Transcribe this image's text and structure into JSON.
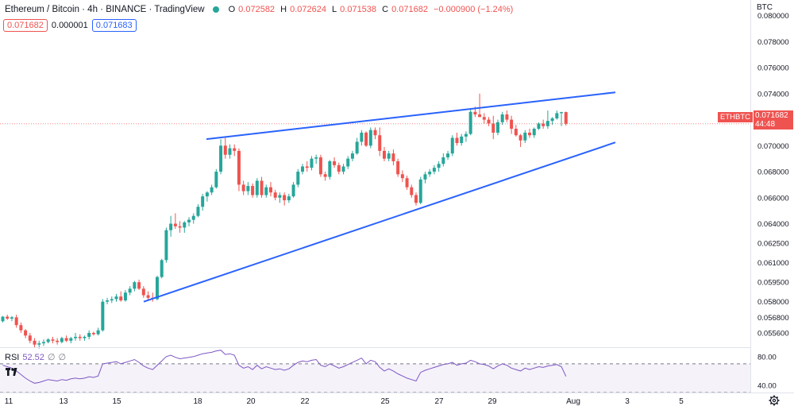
{
  "header": {
    "symbol": "Ethereum / Bitcoin · 4h · BINANCE · TradingView",
    "open_label": "O",
    "open": "0.072582",
    "high_label": "H",
    "high": "0.072624",
    "low_label": "L",
    "low": "0.071538",
    "close_label": "C",
    "close": "0.071682",
    "change": "−0.000900 (−1.24%)",
    "bid": "0.071682",
    "spread": "0.000001",
    "ask": "0.071683"
  },
  "price_axis": {
    "currency": "BTC",
    "ticks": [
      "0.080000",
      "0.078000",
      "0.076000",
      "0.074000",
      "0.070000",
      "0.068000",
      "0.066000",
      "0.064000",
      "0.062500",
      "0.061000",
      "0.059500",
      "0.058000",
      "0.056800",
      "0.055600"
    ],
    "symbol_tag": "ETHBTC",
    "last_price": "0.071682",
    "countdown": "44:48"
  },
  "rsi": {
    "label": "RSI",
    "value": "52.52",
    "extra1": "∅",
    "extra2": "∅",
    "ticks": [
      "80.00",
      "40.00"
    ]
  },
  "time_axis": {
    "ticks": [
      "11",
      "13",
      "15",
      "18",
      "20",
      "22",
      "25",
      "27",
      "29",
      "Aug",
      "3",
      "5"
    ]
  },
  "colors": {
    "up": "#26a69a",
    "down": "#ef5350",
    "trendline": "#2962ff",
    "rsi": "#7e57c2"
  },
  "chart_data": {
    "type": "candlestick",
    "title": "Ethereum / Bitcoin · 4h · BINANCE · TradingView",
    "ylim": [
      0.0545,
      0.0812
    ],
    "candles": [
      [
        0.0565,
        0.0569,
        0.0564,
        0.05685
      ],
      [
        0.05685,
        0.057,
        0.0566,
        0.0567
      ],
      [
        0.0567,
        0.0569,
        0.0565,
        0.0568
      ],
      [
        0.0568,
        0.057,
        0.056,
        0.0562
      ],
      [
        0.0562,
        0.0564,
        0.0556,
        0.0558
      ],
      [
        0.0558,
        0.0559,
        0.0552,
        0.0554
      ],
      [
        0.0554,
        0.0556,
        0.0548,
        0.055
      ],
      [
        0.055,
        0.0552,
        0.0545,
        0.0547
      ],
      [
        0.0547,
        0.055,
        0.0544,
        0.0548
      ],
      [
        0.0548,
        0.0551,
        0.0546,
        0.0549
      ],
      [
        0.0549,
        0.0552,
        0.0548,
        0.0551
      ],
      [
        0.0551,
        0.0553,
        0.0548,
        0.055
      ],
      [
        0.055,
        0.0552,
        0.0547,
        0.0549
      ],
      [
        0.0549,
        0.0553,
        0.0548,
        0.0552
      ],
      [
        0.0552,
        0.0554,
        0.0549,
        0.055
      ],
      [
        0.055,
        0.0553,
        0.0548,
        0.0552
      ],
      [
        0.0552,
        0.0556,
        0.055,
        0.0553
      ],
      [
        0.0553,
        0.0555,
        0.055,
        0.0552
      ],
      [
        0.0552,
        0.0554,
        0.055,
        0.0553
      ],
      [
        0.0553,
        0.0558,
        0.0551,
        0.0556
      ],
      [
        0.0556,
        0.0557,
        0.0554,
        0.0555
      ],
      [
        0.0555,
        0.056,
        0.0554,
        0.0558
      ],
      [
        0.0558,
        0.0582,
        0.0557,
        0.058
      ],
      [
        0.058,
        0.0583,
        0.0578,
        0.0581
      ],
      [
        0.0581,
        0.0584,
        0.0579,
        0.0582
      ],
      [
        0.0582,
        0.0586,
        0.058,
        0.0584
      ],
      [
        0.0584,
        0.0588,
        0.058,
        0.0581
      ],
      [
        0.0581,
        0.0589,
        0.058,
        0.0587
      ],
      [
        0.0587,
        0.0592,
        0.0585,
        0.059
      ],
      [
        0.059,
        0.0596,
        0.0588,
        0.0595
      ],
      [
        0.0595,
        0.0597,
        0.0589,
        0.059
      ],
      [
        0.059,
        0.0592,
        0.0583,
        0.0585
      ],
      [
        0.0585,
        0.0588,
        0.0581,
        0.0583
      ],
      [
        0.0583,
        0.0587,
        0.058,
        0.0582
      ],
      [
        0.0582,
        0.06,
        0.0581,
        0.0599
      ],
      [
        0.0599,
        0.0613,
        0.0598,
        0.0612
      ],
      [
        0.0612,
        0.0637,
        0.061,
        0.0635
      ],
      [
        0.0635,
        0.0646,
        0.063,
        0.064
      ],
      [
        0.064,
        0.0648,
        0.0636,
        0.0638
      ],
      [
        0.0638,
        0.0642,
        0.0633,
        0.0637
      ],
      [
        0.0637,
        0.0642,
        0.0633,
        0.0641
      ],
      [
        0.0641,
        0.0645,
        0.0638,
        0.0643
      ],
      [
        0.0643,
        0.0648,
        0.064,
        0.0646
      ],
      [
        0.0646,
        0.0655,
        0.0645,
        0.0653
      ],
      [
        0.0653,
        0.0663,
        0.065,
        0.0661
      ],
      [
        0.0661,
        0.0665,
        0.0657,
        0.0664
      ],
      [
        0.0664,
        0.067,
        0.0662,
        0.0668
      ],
      [
        0.0668,
        0.0682,
        0.0667,
        0.068
      ],
      [
        0.068,
        0.0705,
        0.0678,
        0.07
      ],
      [
        0.07,
        0.0706,
        0.069,
        0.0693
      ],
      [
        0.0693,
        0.0701,
        0.069,
        0.0698
      ],
      [
        0.0698,
        0.0701,
        0.0692,
        0.0696
      ],
      [
        0.0696,
        0.0698,
        0.0665,
        0.067
      ],
      [
        0.067,
        0.0673,
        0.0662,
        0.0665
      ],
      [
        0.0665,
        0.0672,
        0.0662,
        0.0669
      ],
      [
        0.0669,
        0.0671,
        0.066,
        0.0662
      ],
      [
        0.0662,
        0.0675,
        0.066,
        0.0673
      ],
      [
        0.0673,
        0.0676,
        0.066,
        0.0662
      ],
      [
        0.0662,
        0.067,
        0.066,
        0.0668
      ],
      [
        0.0668,
        0.0672,
        0.0661,
        0.0664
      ],
      [
        0.0664,
        0.0666,
        0.0658,
        0.066
      ],
      [
        0.066,
        0.0664,
        0.0656,
        0.0662
      ],
      [
        0.0662,
        0.0664,
        0.0654,
        0.0658
      ],
      [
        0.0658,
        0.0663,
        0.0656,
        0.0661
      ],
      [
        0.0661,
        0.0672,
        0.066,
        0.067
      ],
      [
        0.067,
        0.0682,
        0.0668,
        0.068
      ],
      [
        0.068,
        0.0686,
        0.0678,
        0.0684
      ],
      [
        0.0684,
        0.0688,
        0.068,
        0.0683
      ],
      [
        0.0683,
        0.0692,
        0.0681,
        0.069
      ],
      [
        0.069,
        0.0693,
        0.0686,
        0.0691
      ],
      [
        0.0691,
        0.0693,
        0.0676,
        0.0678
      ],
      [
        0.0678,
        0.068,
        0.0673,
        0.0676
      ],
      [
        0.0676,
        0.0689,
        0.0674,
        0.0688
      ],
      [
        0.0688,
        0.0691,
        0.0683,
        0.0685
      ],
      [
        0.0685,
        0.0687,
        0.0678,
        0.068
      ],
      [
        0.068,
        0.0686,
        0.0678,
        0.0684
      ],
      [
        0.0684,
        0.0692,
        0.0682,
        0.069
      ],
      [
        0.069,
        0.0696,
        0.0688,
        0.0694
      ],
      [
        0.0694,
        0.0706,
        0.0693,
        0.0703
      ],
      [
        0.0703,
        0.0712,
        0.07,
        0.071
      ],
      [
        0.071,
        0.0711,
        0.0699,
        0.07
      ],
      [
        0.07,
        0.0714,
        0.0698,
        0.0712
      ],
      [
        0.0712,
        0.0714,
        0.0705,
        0.0708
      ],
      [
        0.0708,
        0.0714,
        0.0692,
        0.0696
      ],
      [
        0.0696,
        0.0699,
        0.0688,
        0.069
      ],
      [
        0.069,
        0.0696,
        0.0688,
        0.0694
      ],
      [
        0.0694,
        0.0697,
        0.0685,
        0.0688
      ],
      [
        0.0688,
        0.069,
        0.0676,
        0.0678
      ],
      [
        0.0678,
        0.0681,
        0.0672,
        0.0675
      ],
      [
        0.0675,
        0.0677,
        0.0666,
        0.0668
      ],
      [
        0.0668,
        0.067,
        0.066,
        0.0662
      ],
      [
        0.0662,
        0.0664,
        0.0654,
        0.0656
      ],
      [
        0.0656,
        0.0676,
        0.0655,
        0.0674
      ],
      [
        0.0674,
        0.068,
        0.0671,
        0.0678
      ],
      [
        0.0678,
        0.0682,
        0.0676,
        0.068
      ],
      [
        0.068,
        0.0685,
        0.0678,
        0.0683
      ],
      [
        0.0683,
        0.0688,
        0.068,
        0.0686
      ],
      [
        0.0686,
        0.0694,
        0.0684,
        0.0691
      ],
      [
        0.0691,
        0.0696,
        0.0689,
        0.0694
      ],
      [
        0.0694,
        0.0708,
        0.0692,
        0.0706
      ],
      [
        0.0706,
        0.071,
        0.07,
        0.0702
      ],
      [
        0.0702,
        0.0709,
        0.07,
        0.0707
      ],
      [
        0.0707,
        0.0711,
        0.0703,
        0.0709
      ],
      [
        0.0709,
        0.0728,
        0.0708,
        0.0726
      ],
      [
        0.0726,
        0.073,
        0.0722,
        0.0724
      ],
      [
        0.0724,
        0.074,
        0.0722,
        0.0722
      ],
      [
        0.0722,
        0.0725,
        0.0717,
        0.072
      ],
      [
        0.072,
        0.0722,
        0.0715,
        0.0717
      ],
      [
        0.0717,
        0.0723,
        0.0705,
        0.071
      ],
      [
        0.071,
        0.072,
        0.0708,
        0.0718
      ],
      [
        0.0718,
        0.0726,
        0.0716,
        0.0724
      ],
      [
        0.0724,
        0.0727,
        0.0718,
        0.072
      ],
      [
        0.072,
        0.0723,
        0.0709,
        0.0713
      ],
      [
        0.0713,
        0.0716,
        0.0707,
        0.0708
      ],
      [
        0.0708,
        0.0709,
        0.0699,
        0.0704
      ],
      [
        0.0704,
        0.0712,
        0.0702,
        0.071
      ],
      [
        0.071,
        0.0713,
        0.0706,
        0.0708
      ],
      [
        0.0708,
        0.0714,
        0.0706,
        0.0713
      ],
      [
        0.0713,
        0.0718,
        0.0712,
        0.0717
      ],
      [
        0.0717,
        0.072,
        0.0713,
        0.0715
      ],
      [
        0.0715,
        0.0727,
        0.0713,
        0.0719
      ],
      [
        0.0719,
        0.0722,
        0.0716,
        0.0721
      ],
      [
        0.0721,
        0.0727,
        0.072,
        0.0725
      ],
      [
        0.0725,
        0.0726,
        0.0715,
        0.07258
      ],
      [
        0.07258,
        0.07262,
        0.07154,
        0.07168
      ]
    ],
    "trendlines": [
      {
        "name": "upper",
        "points": [
          [
            0.0705
          ],
          [
            0.0741
          ]
        ]
      },
      {
        "name": "lower",
        "points": [
          [
            0.058
          ],
          [
            0.07025
          ]
        ]
      }
    ],
    "rsi": {
      "ylim": [
        30,
        92
      ],
      "levels": [
        70,
        30
      ],
      "values": [
        68,
        66,
        64,
        60,
        55,
        50,
        46,
        43,
        44,
        46,
        48,
        47,
        46,
        48,
        47,
        49,
        50,
        49,
        50,
        52,
        51,
        53,
        70,
        71,
        72,
        73,
        70,
        72,
        74,
        76,
        72,
        67,
        64,
        62,
        68,
        74,
        80,
        82,
        79,
        77,
        78,
        79,
        80,
        82,
        84,
        85,
        86,
        88,
        89,
        83,
        84,
        82,
        68,
        64,
        66,
        62,
        68,
        63,
        66,
        64,
        62,
        63,
        61,
        63,
        68,
        72,
        74,
        73,
        75,
        76,
        68,
        66,
        70,
        67,
        64,
        66,
        69,
        72,
        75,
        78,
        70,
        75,
        73,
        65,
        60,
        63,
        60,
        56,
        53,
        50,
        48,
        46,
        58,
        61,
        63,
        65,
        67,
        69,
        70,
        72,
        68,
        70,
        71,
        75,
        73,
        70,
        69,
        67,
        63,
        67,
        70,
        68,
        64,
        62,
        60,
        64,
        62,
        64,
        66,
        65,
        67,
        68,
        69,
        66,
        52.52
      ]
    },
    "price_axis_label": "BTC",
    "x_ticks": [
      "11",
      "13",
      "15",
      "18",
      "20",
      "22",
      "25",
      "27",
      "29",
      "Aug",
      "3",
      "5"
    ]
  }
}
